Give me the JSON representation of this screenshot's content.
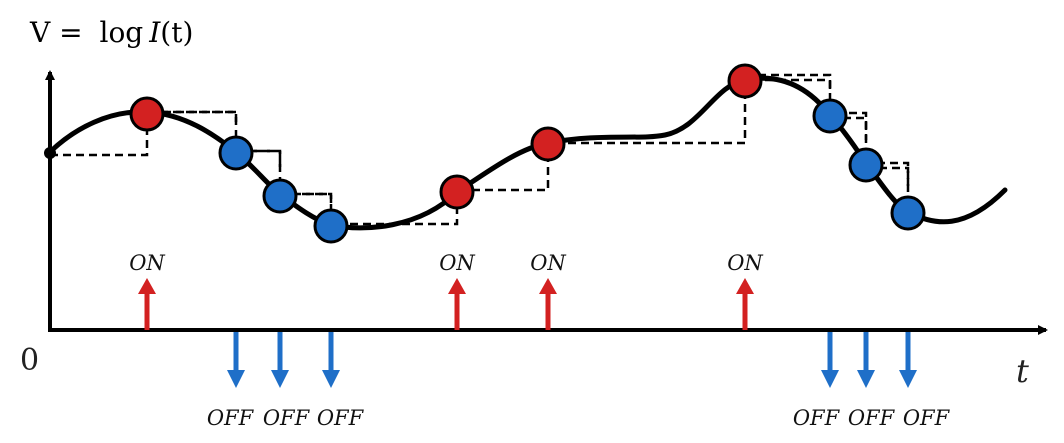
{
  "y_axis_label": {
    "prefix": "V = ",
    "func": "log",
    "var": "I",
    "arg": "(t)"
  },
  "origin_label": "0",
  "x_axis_label": "t",
  "on_label": "ON",
  "off_label": "OFF",
  "colors": {
    "curve": "#000000",
    "on": "#d32121",
    "off": "#1f6fc8",
    "axis": "#000000"
  },
  "samples": [
    {
      "t": 0.0,
      "kind": "start"
    },
    {
      "t": 0.1,
      "kind": "on"
    },
    {
      "t": 0.19,
      "kind": "off"
    },
    {
      "t": 0.24,
      "kind": "off"
    },
    {
      "t": 0.29,
      "kind": "off"
    },
    {
      "t": 0.43,
      "kind": "on"
    },
    {
      "t": 0.53,
      "kind": "on"
    },
    {
      "t": 0.74,
      "kind": "on"
    },
    {
      "t": 0.83,
      "kind": "off"
    },
    {
      "t": 0.87,
      "kind": "off"
    },
    {
      "t": 0.91,
      "kind": "off"
    }
  ]
}
